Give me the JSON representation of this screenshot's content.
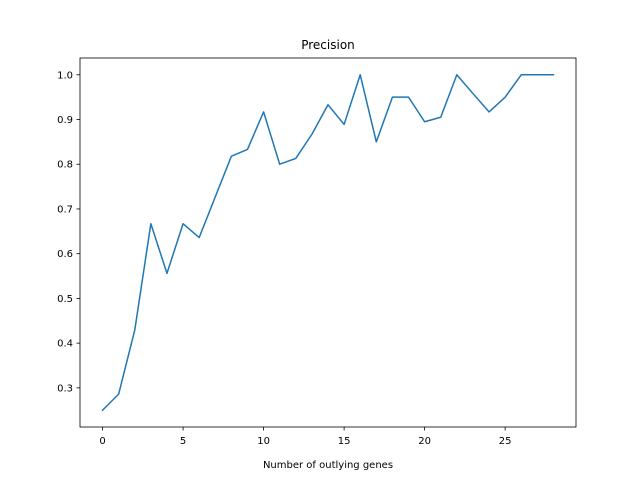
{
  "chart_data": {
    "type": "line",
    "title": "Precision",
    "xlabel": "Number of outlying genes",
    "ylabel": "",
    "xlim": [
      -1.4,
      29.4
    ],
    "ylim": [
      0.2125,
      1.0375
    ],
    "x_ticks": [
      0,
      5,
      10,
      15,
      20,
      25
    ],
    "y_ticks": [
      0.3,
      0.4,
      0.5,
      0.6,
      0.7,
      0.8,
      0.9,
      1.0
    ],
    "x_tick_labels": [
      "0",
      "5",
      "10",
      "15",
      "20",
      "25"
    ],
    "y_tick_labels": [
      "0.3",
      "0.4",
      "0.5",
      "0.6",
      "0.7",
      "0.8",
      "0.9",
      "1.0"
    ],
    "grid": false,
    "legend": "none",
    "series": [
      {
        "color": "#1f77b4",
        "x": [
          0,
          1,
          2,
          3,
          4,
          5,
          6,
          7,
          8,
          9,
          10,
          11,
          12,
          13,
          14,
          15,
          16,
          17,
          18,
          19,
          20,
          21,
          22,
          23,
          24,
          25,
          26,
          27,
          28
        ],
        "values": [
          0.25,
          0.286,
          0.429,
          0.667,
          0.556,
          0.667,
          0.636,
          0.727,
          0.818,
          0.833,
          0.917,
          0.8,
          0.813,
          0.867,
          0.933,
          0.889,
          1.0,
          0.85,
          0.95,
          0.95,
          0.895,
          0.905,
          1.0,
          0.958,
          0.917,
          0.95,
          1.0,
          1.0,
          1.0
        ]
      }
    ]
  }
}
